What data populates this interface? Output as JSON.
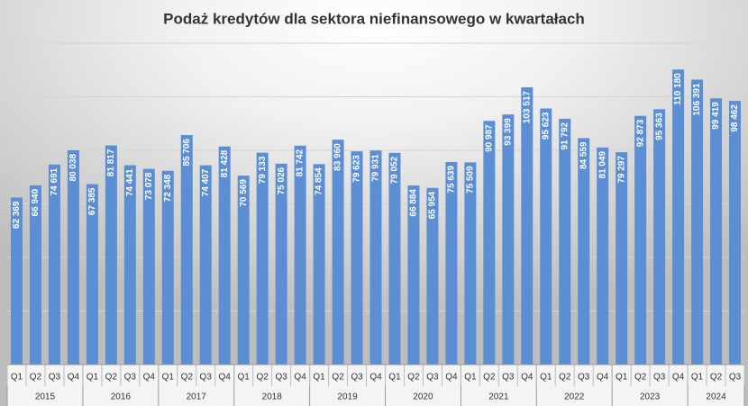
{
  "chart_data": {
    "type": "bar",
    "title": "Podaż kredytów dla sektora niefinansowego w kwartałach",
    "categories": [
      "Q1",
      "Q2",
      "Q3",
      "Q4",
      "Q1",
      "Q2",
      "Q3",
      "Q4",
      "Q1",
      "Q2",
      "Q3",
      "Q4",
      "Q1",
      "Q2",
      "Q3",
      "Q4",
      "Q1",
      "Q2",
      "Q3",
      "Q4",
      "Q1",
      "Q2",
      "Q3",
      "Q4",
      "Q1",
      "Q2",
      "Q3",
      "Q4",
      "Q1",
      "Q2",
      "Q3",
      "Q4",
      "Q1",
      "Q2",
      "Q3",
      "Q4",
      "Q1",
      "Q2",
      "Q3"
    ],
    "x_groups": [
      "2015",
      "2016",
      "2017",
      "2018",
      "2019",
      "2020",
      "2021",
      "2022",
      "2023",
      "2024"
    ],
    "values": [
      62369,
      66940,
      74691,
      80038,
      67385,
      81817,
      74441,
      73078,
      72348,
      85706,
      74407,
      81428,
      70569,
      79133,
      75026,
      81742,
      74854,
      83960,
      79623,
      79931,
      79052,
      66884,
      65954,
      75639,
      75509,
      90987,
      93399,
      103517,
      95623,
      91792,
      84559,
      81049,
      79297,
      92873,
      95363,
      110180,
      106391,
      99419,
      98462
    ],
    "value_labels": [
      "62 369",
      "66 940",
      "74 691",
      "80 038",
      "67 385",
      "81 817",
      "74 441",
      "73 078",
      "72 348",
      "85 706",
      "74 407",
      "81 428",
      "70 569",
      "79 133",
      "75 026",
      "81 742",
      "74 854",
      "83 960",
      "79 623",
      "79 931",
      "79 052",
      "66 884",
      "65 954",
      "75 639",
      "75 509",
      "90 987",
      "93 399",
      "103 517",
      "95 623",
      "91 792",
      "84 559",
      "81 049",
      "79 297",
      "92 873",
      "95 363",
      "110 180",
      "106 391",
      "99 419",
      "98 462"
    ],
    "color": "#5b8ed3",
    "ylim": [
      0,
      120000
    ],
    "yticks": [
      0,
      20000,
      40000,
      60000,
      80000,
      100000,
      120000
    ],
    "grid": true
  }
}
